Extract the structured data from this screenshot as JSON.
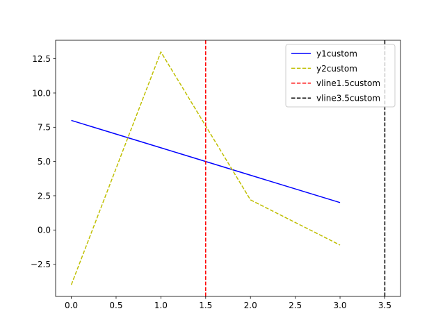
{
  "chart_data": {
    "type": "line",
    "title": "",
    "xlabel": "",
    "ylabel": "",
    "xlim": [
      -0.175,
      3.675
    ],
    "ylim": [
      -4.85,
      13.85
    ],
    "xticks": [
      0.0,
      0.5,
      1.0,
      1.5,
      2.0,
      2.5,
      3.0,
      3.5
    ],
    "xtick_labels": [
      "0.0",
      "0.5",
      "1.0",
      "1.5",
      "2.0",
      "2.5",
      "3.0",
      "3.5"
    ],
    "yticks": [
      -2.5,
      0.0,
      2.5,
      5.0,
      7.5,
      10.0,
      12.5
    ],
    "ytick_labels": [
      "−2.5",
      "0.0",
      "2.5",
      "5.0",
      "7.5",
      "10.0",
      "12.5"
    ],
    "grid": false,
    "legend_position": "upper right",
    "series": [
      {
        "name": "y1custom",
        "x": [
          0,
          1,
          2,
          3
        ],
        "y": [
          8,
          6,
          4,
          2
        ],
        "color": "#0000ff",
        "style": "solid"
      },
      {
        "name": "y2custom",
        "x": [
          0,
          1,
          2,
          3
        ],
        "y": [
          -4,
          13,
          2.2,
          -1.1
        ],
        "color": "#bfbf00",
        "style": "dashed"
      }
    ],
    "vlines": [
      {
        "name": "vline1.5custom",
        "x": 1.5,
        "color": "#ff0000",
        "style": "dashed"
      },
      {
        "name": "vline3.5custom",
        "x": 3.5,
        "color": "#000000",
        "style": "dashed"
      }
    ]
  }
}
